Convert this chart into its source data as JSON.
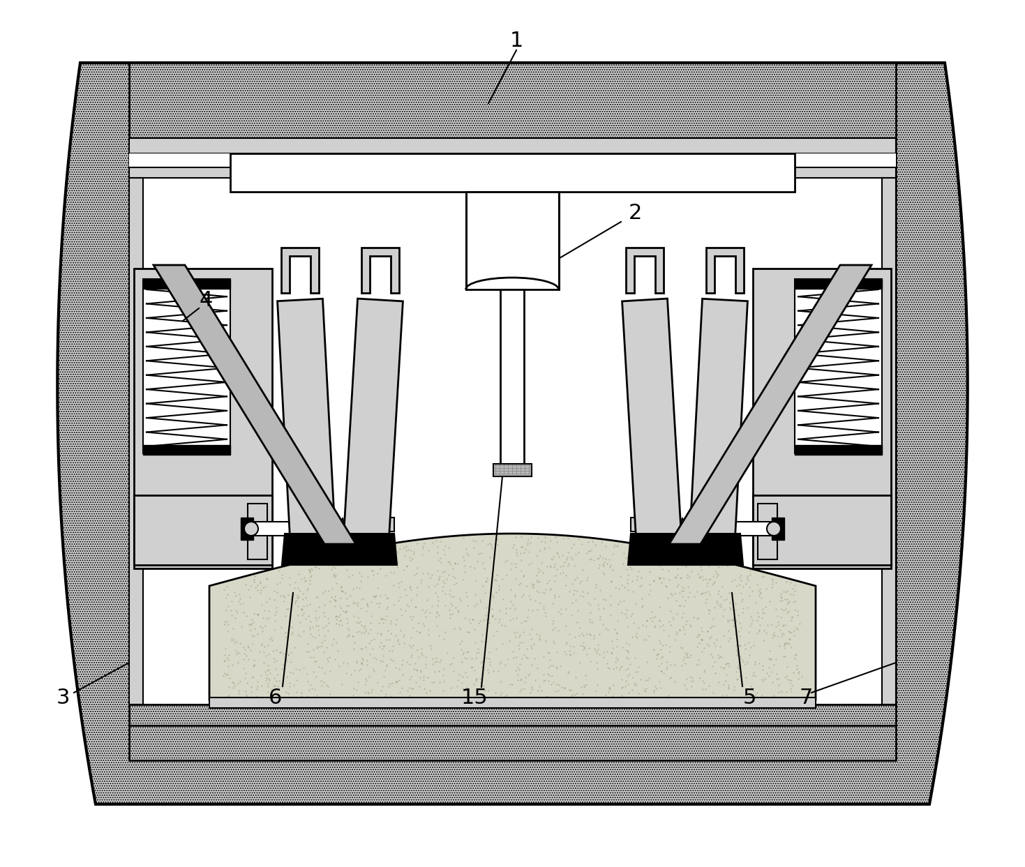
{
  "bg": "#ffffff",
  "hatch_fill": "#d3d3d3",
  "light_gray": "#d0d0d0",
  "mid_gray": "#b8b8b8",
  "outline": "#000000",
  "lens_color": "#d8d8c8",
  "figsize": [
    14.69,
    12.43
  ],
  "dpi": 100
}
